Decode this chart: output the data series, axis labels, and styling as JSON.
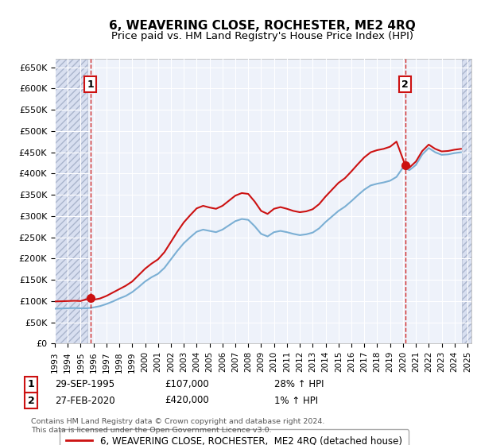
{
  "title": "6, WEAVERING CLOSE, ROCHESTER, ME2 4RQ",
  "subtitle": "Price paid vs. HM Land Registry's House Price Index (HPI)",
  "ylim": [
    0,
    670000
  ],
  "yticks": [
    0,
    50000,
    100000,
    150000,
    200000,
    250000,
    300000,
    350000,
    400000,
    450000,
    500000,
    550000,
    600000,
    650000
  ],
  "ytick_labels": [
    "£0",
    "£50K",
    "£100K",
    "£150K",
    "£200K",
    "£250K",
    "£300K",
    "£350K",
    "£400K",
    "£450K",
    "£500K",
    "£550K",
    "£600K",
    "£650K"
  ],
  "background_color": "#eef2fa",
  "hatch_zone_color": "#d8dff0",
  "grid_color": "#ffffff",
  "sale1_x": 1995.75,
  "sale1_y": 107000,
  "sale2_x": 2020.17,
  "sale2_y": 420000,
  "legend_line1": "6, WEAVERING CLOSE, ROCHESTER,  ME2 4RQ (detached house)",
  "legend_line2": "HPI: Average price, detached house, Medway",
  "ann1_date": "29-SEP-1995",
  "ann1_price": "£107,000",
  "ann1_hpi": "28% ↑ HPI",
  "ann2_date": "27-FEB-2020",
  "ann2_price": "£420,000",
  "ann2_hpi": "1% ↑ HPI",
  "footer": "Contains HM Land Registry data © Crown copyright and database right 2024.\nThis data is licensed under the Open Government Licence v3.0.",
  "hpi_color": "#7bafd4",
  "price_color": "#cc1111",
  "dot_color": "#cc1111",
  "hatch_left_start": 1993.0,
  "hatch_left_end": 1995.5,
  "hatch_right_start": 2024.6,
  "hatch_right_end": 2025.3,
  "xlim_left": 1993.0,
  "xlim_right": 2025.3,
  "hpi_years": [
    1993.0,
    1993.5,
    1994.0,
    1994.5,
    1995.0,
    1995.5,
    1996.0,
    1996.5,
    1997.0,
    1997.5,
    1998.0,
    1998.5,
    1999.0,
    1999.5,
    2000.0,
    2000.5,
    2001.0,
    2001.5,
    2002.0,
    2002.5,
    2003.0,
    2003.5,
    2004.0,
    2004.5,
    2005.0,
    2005.5,
    2006.0,
    2006.5,
    2007.0,
    2007.5,
    2008.0,
    2008.5,
    2009.0,
    2009.5,
    2010.0,
    2010.5,
    2011.0,
    2011.5,
    2012.0,
    2012.5,
    2013.0,
    2013.5,
    2014.0,
    2014.5,
    2015.0,
    2015.5,
    2016.0,
    2016.5,
    2017.0,
    2017.5,
    2018.0,
    2018.5,
    2019.0,
    2019.5,
    2020.0,
    2020.5,
    2021.0,
    2021.5,
    2022.0,
    2022.5,
    2023.0,
    2023.5,
    2024.0,
    2024.5
  ],
  "hpi_values": [
    82000,
    82500,
    83000,
    83500,
    83000,
    83000,
    85000,
    88000,
    93000,
    99000,
    106000,
    112000,
    121000,
    133000,
    146000,
    156000,
    164000,
    178000,
    198000,
    218000,
    236000,
    250000,
    263000,
    268000,
    265000,
    262000,
    268000,
    278000,
    288000,
    293000,
    291000,
    276000,
    258000,
    252000,
    262000,
    265000,
    262000,
    258000,
    255000,
    257000,
    261000,
    271000,
    286000,
    299000,
    312000,
    322000,
    335000,
    349000,
    362000,
    372000,
    376000,
    379000,
    383000,
    392000,
    414000,
    408000,
    420000,
    445000,
    460000,
    450000,
    444000,
    445000,
    448000,
    450000
  ],
  "price_years": [
    1993.0,
    1993.5,
    1994.0,
    1994.5,
    1995.0,
    1995.75,
    1996.0,
    1996.5,
    1997.0,
    1997.5,
    1998.0,
    1998.5,
    1999.0,
    1999.5,
    2000.0,
    2000.5,
    2001.0,
    2001.5,
    2002.0,
    2002.5,
    2003.0,
    2003.5,
    2004.0,
    2004.5,
    2005.0,
    2005.5,
    2006.0,
    2006.5,
    2007.0,
    2007.5,
    2008.0,
    2008.5,
    2009.0,
    2009.5,
    2010.0,
    2010.5,
    2011.0,
    2011.5,
    2012.0,
    2012.5,
    2013.0,
    2013.5,
    2014.0,
    2014.5,
    2015.0,
    2015.5,
    2016.0,
    2016.5,
    2017.0,
    2017.5,
    2018.0,
    2018.5,
    2019.0,
    2019.5,
    2020.17,
    2020.5,
    2021.0,
    2021.5,
    2022.0,
    2022.5,
    2023.0,
    2023.5,
    2024.0,
    2024.5
  ],
  "price_values": [
    99000,
    99500,
    100000,
    100500,
    100000,
    107000,
    103000,
    106000,
    112000,
    120000,
    128000,
    136000,
    146000,
    161000,
    176000,
    188000,
    198000,
    215000,
    239000,
    263000,
    285000,
    302000,
    318000,
    324000,
    320000,
    317000,
    324000,
    336000,
    348000,
    354000,
    352000,
    334000,
    312000,
    305000,
    317000,
    321000,
    317000,
    312000,
    309000,
    311000,
    316000,
    328000,
    346000,
    362000,
    378000,
    389000,
    405000,
    422000,
    438000,
    450000,
    455000,
    458000,
    463000,
    475000,
    420000,
    414000,
    428000,
    453000,
    468000,
    458000,
    452000,
    453000,
    456000,
    458000
  ]
}
